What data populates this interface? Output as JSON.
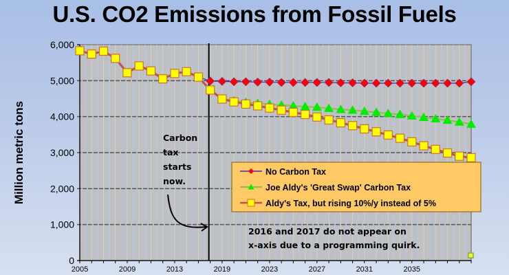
{
  "chart_data": {
    "type": "line",
    "title": "U.S. CO2 Emissions from Fossil Fuels",
    "xlabel": "",
    "ylabel": "Million metric tons",
    "ylim": [
      0,
      6000
    ],
    "yticks": [
      0,
      1000,
      2000,
      3000,
      4000,
      5000,
      6000
    ],
    "ytick_labels": [
      "0",
      "1,000",
      "2,000",
      "3,000",
      "4,000",
      "5,000",
      "6,000"
    ],
    "x": [
      2005,
      2006,
      2007,
      2008,
      2009,
      2010,
      2011,
      2012,
      2013,
      2014,
      2015,
      2018,
      2019,
      2020,
      2021,
      2022,
      2023,
      2024,
      2025,
      2026,
      2027,
      2028,
      2029,
      2030,
      2031,
      2032,
      2033,
      2034,
      2035,
      2036,
      2037,
      2038,
      2039,
      2040
    ],
    "xtick_labels": [
      "2005",
      "2009",
      "2013",
      "2019",
      "2023",
      "2027",
      "2031",
      "2035"
    ],
    "grid": true,
    "legend_position": "lower-right",
    "carbon_tax_start_marker_x": 2018,
    "series": [
      {
        "name": "No Carbon Tax",
        "color": "#3333aa",
        "marker": "diamond",
        "marker_color": "#ff0000",
        "values": [
          5830,
          5740,
          5820,
          5620,
          5220,
          5410,
          5270,
          5050,
          5200,
          5250,
          5100,
          4990,
          4980,
          4970,
          4970,
          4960,
          4960,
          4950,
          4950,
          4950,
          4950,
          4950,
          4940,
          4940,
          4930,
          4930,
          4930,
          4930,
          4930,
          4930,
          4930,
          4930,
          4930,
          4970
        ]
      },
      {
        "name": "Joe Aldy's 'Great Swap' Carbon Tax",
        "color": "#9bbb59",
        "marker": "triangle",
        "marker_color": "#00ee00",
        "values": [
          5830,
          5740,
          5820,
          5620,
          5220,
          5410,
          5270,
          5050,
          5200,
          5250,
          5100,
          4740,
          4500,
          4440,
          4400,
          4370,
          4340,
          4320,
          4300,
          4280,
          4260,
          4230,
          4200,
          4180,
          4150,
          4120,
          4090,
          4060,
          4020,
          3980,
          3940,
          3900,
          3850,
          3790
        ]
      },
      {
        "name": "Aldy's Tax, but rising 10%/y instead of 5%",
        "color": "#c0504d",
        "marker": "square",
        "marker_color": "#ffff00",
        "values": [
          5830,
          5740,
          5820,
          5620,
          5220,
          5410,
          5270,
          5050,
          5200,
          5250,
          5100,
          4740,
          4490,
          4410,
          4350,
          4300,
          4240,
          4180,
          4120,
          4060,
          3990,
          3910,
          3830,
          3750,
          3660,
          3580,
          3490,
          3400,
          3300,
          3190,
          3090,
          2990,
          2900,
          2860
        ]
      }
    ],
    "annotations": {
      "carbon_tax_note": [
        "Carbon",
        "tax",
        "starts",
        "now."
      ],
      "axis_quirk_note": [
        "2016 and 2017 do not appear on",
        "x-axis due to a programming quirk."
      ]
    }
  }
}
